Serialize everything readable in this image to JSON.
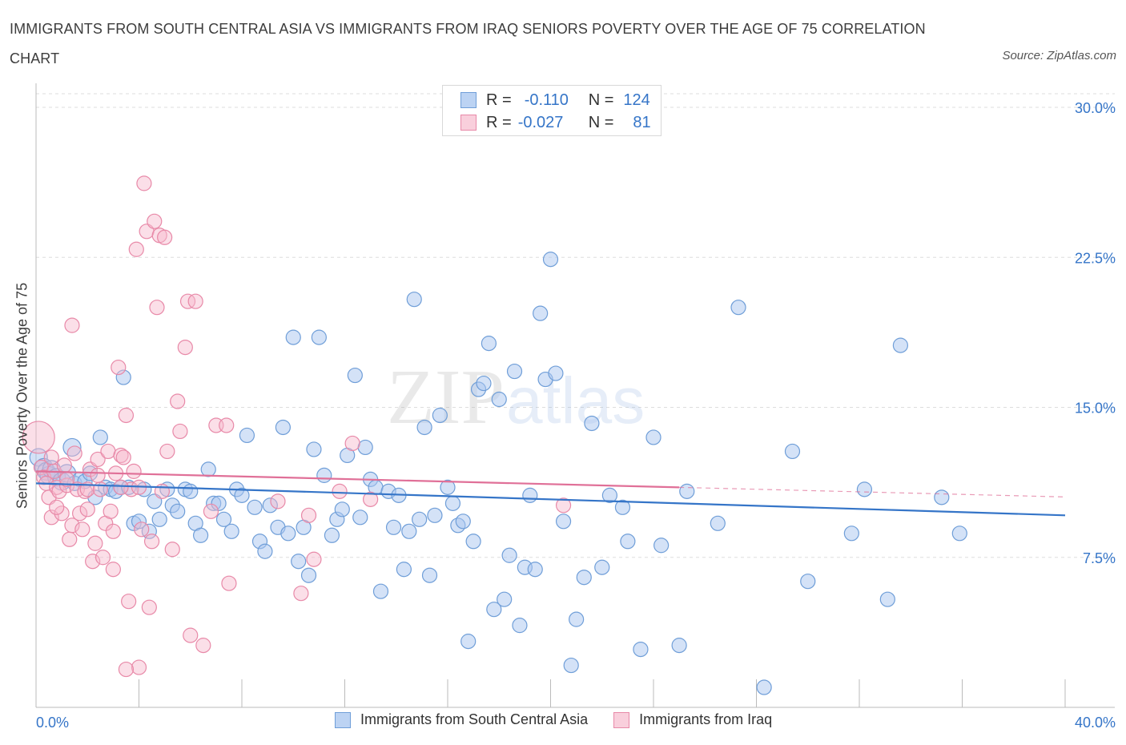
{
  "title": "IMMIGRANTS FROM SOUTH CENTRAL ASIA VS IMMIGRANTS FROM IRAQ SENIORS POVERTY OVER THE AGE OF 75 CORRELATION CHART",
  "source": "Source: ZipAtlas.com",
  "watermark": {
    "zip": "ZIP",
    "atlas": "atlas"
  },
  "legend": {
    "series1": {
      "r_label": "R =",
      "r_value": "-0.110",
      "n_label": "N =",
      "n_value": "124"
    },
    "series2": {
      "r_label": "R =",
      "r_value": "-0.027",
      "n_label": "N =",
      "n_value": "81"
    }
  },
  "colors": {
    "blue_fill": "#a9c6ef",
    "blue_stroke": "#6f9ed8",
    "blue_line": "#3575c8",
    "pink_fill": "#f6b9cc",
    "pink_stroke": "#e889a8",
    "pink_line": "#e07098",
    "axis_label": "#3575c8",
    "grid": "#dddddd"
  },
  "chart_data": {
    "type": "scatter",
    "title": "IMMIGRANTS FROM SOUTH CENTRAL ASIA VS IMMIGRANTS FROM IRAQ SENIORS POVERTY OVER THE AGE OF 75 CORRELATION CHART",
    "xlabel": "",
    "ylabel": "Seniors Poverty Over the Age of 75",
    "xlim": [
      0,
      40
    ],
    "ylim": [
      0,
      30
    ],
    "x_tick_labels": [
      "0.0%",
      "40.0%"
    ],
    "y_ticks": [
      7.5,
      15.0,
      22.5,
      30.0
    ],
    "y_tick_labels": [
      "7.5%",
      "15.0%",
      "22.5%",
      "30.0%"
    ],
    "grid": "horizontal dashed",
    "legend_position": "top-center and bottom",
    "series": [
      {
        "name": "Immigrants from South Central Asia",
        "color": "#a9c6ef",
        "trend": {
          "x": [
            0,
            40
          ],
          "y": [
            11.2,
            9.6
          ]
        },
        "points": [
          [
            0.1,
            12.5
          ],
          [
            0.3,
            12.0
          ],
          [
            0.4,
            11.8
          ],
          [
            0.5,
            11.6
          ],
          [
            0.6,
            11.9
          ],
          [
            0.8,
            11.5
          ],
          [
            1.0,
            11.3
          ],
          [
            1.2,
            11.7
          ],
          [
            1.4,
            13.0
          ],
          [
            1.5,
            11.2
          ],
          [
            1.7,
            11.4
          ],
          [
            1.9,
            11.3
          ],
          [
            2.1,
            11.7
          ],
          [
            2.3,
            10.5
          ],
          [
            2.5,
            13.5
          ],
          [
            2.7,
            11.0
          ],
          [
            2.9,
            10.9
          ],
          [
            3.1,
            10.8
          ],
          [
            3.3,
            11.0
          ],
          [
            3.4,
            16.5
          ],
          [
            3.6,
            11.0
          ],
          [
            3.8,
            9.2
          ],
          [
            4.0,
            9.3
          ],
          [
            4.2,
            10.9
          ],
          [
            4.4,
            8.8
          ],
          [
            4.6,
            10.3
          ],
          [
            4.8,
            9.4
          ],
          [
            5.1,
            10.9
          ],
          [
            5.3,
            10.1
          ],
          [
            5.5,
            9.8
          ],
          [
            5.8,
            10.9
          ],
          [
            6.0,
            10.8
          ],
          [
            6.2,
            9.2
          ],
          [
            6.4,
            8.6
          ],
          [
            6.7,
            11.9
          ],
          [
            6.9,
            10.2
          ],
          [
            7.1,
            10.2
          ],
          [
            7.3,
            9.4
          ],
          [
            7.6,
            8.8
          ],
          [
            7.8,
            10.9
          ],
          [
            8.0,
            10.6
          ],
          [
            8.2,
            13.6
          ],
          [
            8.5,
            10.0
          ],
          [
            8.7,
            8.3
          ],
          [
            8.9,
            7.8
          ],
          [
            9.1,
            10.1
          ],
          [
            9.4,
            9.0
          ],
          [
            9.6,
            14.0
          ],
          [
            9.8,
            8.7
          ],
          [
            10.0,
            18.5
          ],
          [
            10.2,
            7.3
          ],
          [
            10.4,
            9.0
          ],
          [
            10.6,
            6.6
          ],
          [
            10.8,
            12.9
          ],
          [
            11.0,
            18.5
          ],
          [
            11.2,
            11.6
          ],
          [
            11.5,
            8.6
          ],
          [
            11.7,
            9.4
          ],
          [
            11.9,
            9.9
          ],
          [
            12.1,
            12.6
          ],
          [
            12.4,
            16.6
          ],
          [
            12.6,
            9.5
          ],
          [
            12.8,
            13.0
          ],
          [
            13.0,
            11.4
          ],
          [
            13.2,
            11.0
          ],
          [
            13.4,
            5.8
          ],
          [
            13.7,
            10.8
          ],
          [
            13.9,
            9.0
          ],
          [
            14.1,
            10.6
          ],
          [
            14.3,
            6.9
          ],
          [
            14.5,
            8.8
          ],
          [
            14.7,
            20.4
          ],
          [
            14.9,
            9.4
          ],
          [
            15.1,
            14.0
          ],
          [
            15.3,
            6.6
          ],
          [
            15.5,
            9.6
          ],
          [
            15.7,
            14.6
          ],
          [
            16.0,
            11.0
          ],
          [
            16.2,
            10.2
          ],
          [
            16.4,
            9.1
          ],
          [
            16.6,
            9.3
          ],
          [
            16.8,
            3.3
          ],
          [
            17.0,
            8.3
          ],
          [
            17.2,
            15.9
          ],
          [
            17.4,
            16.2
          ],
          [
            17.6,
            18.2
          ],
          [
            17.8,
            4.9
          ],
          [
            18.0,
            15.4
          ],
          [
            18.2,
            5.4
          ],
          [
            18.4,
            7.6
          ],
          [
            18.6,
            16.8
          ],
          [
            18.8,
            4.1
          ],
          [
            19.0,
            7.0
          ],
          [
            19.2,
            10.6
          ],
          [
            19.4,
            6.9
          ],
          [
            19.6,
            19.7
          ],
          [
            19.8,
            16.4
          ],
          [
            20.0,
            22.4
          ],
          [
            20.2,
            16.7
          ],
          [
            20.5,
            9.3
          ],
          [
            20.8,
            2.1
          ],
          [
            21.0,
            4.4
          ],
          [
            21.3,
            6.5
          ],
          [
            21.6,
            14.2
          ],
          [
            22.0,
            7.0
          ],
          [
            22.3,
            10.6
          ],
          [
            22.8,
            10.0
          ],
          [
            23.0,
            8.3
          ],
          [
            23.5,
            2.9
          ],
          [
            24.0,
            13.5
          ],
          [
            24.3,
            8.1
          ],
          [
            25.0,
            3.1
          ],
          [
            25.3,
            10.8
          ],
          [
            26.5,
            9.2
          ],
          [
            27.3,
            20.0
          ],
          [
            28.3,
            1.0
          ],
          [
            29.4,
            12.8
          ],
          [
            30.0,
            6.3
          ],
          [
            31.7,
            8.7
          ],
          [
            32.2,
            10.9
          ],
          [
            33.1,
            5.4
          ],
          [
            33.6,
            18.1
          ],
          [
            35.2,
            10.5
          ],
          [
            35.9,
            8.7
          ]
        ]
      },
      {
        "name": "Immigrants from Iraq",
        "color": "#f6b9cc",
        "trend": {
          "x": [
            0,
            25
          ],
          "y": [
            11.8,
            11.0
          ]
        },
        "points": [
          [
            0.1,
            13.5
          ],
          [
            0.2,
            12.0
          ],
          [
            0.3,
            11.5
          ],
          [
            0.4,
            11.2
          ],
          [
            0.5,
            10.5
          ],
          [
            0.6,
            9.5
          ],
          [
            0.7,
            11.8
          ],
          [
            0.8,
            11.0
          ],
          [
            0.9,
            10.8
          ],
          [
            1.0,
            9.7
          ],
          [
            1.1,
            12.1
          ],
          [
            1.2,
            11.1
          ],
          [
            1.3,
            8.4
          ],
          [
            1.4,
            9.1
          ],
          [
            1.5,
            12.7
          ],
          [
            1.6,
            10.9
          ],
          [
            1.7,
            9.7
          ],
          [
            1.8,
            8.9
          ],
          [
            1.9,
            10.8
          ],
          [
            2.0,
            10.9
          ],
          [
            2.1,
            11.9
          ],
          [
            2.2,
            7.3
          ],
          [
            2.3,
            8.2
          ],
          [
            2.4,
            12.4
          ],
          [
            2.5,
            10.9
          ],
          [
            2.6,
            7.5
          ],
          [
            2.7,
            9.2
          ],
          [
            2.8,
            12.8
          ],
          [
            2.9,
            9.8
          ],
          [
            3.0,
            6.9
          ],
          [
            3.1,
            11.7
          ],
          [
            3.2,
            17.0
          ],
          [
            3.3,
            12.6
          ],
          [
            3.4,
            12.5
          ],
          [
            3.5,
            14.6
          ],
          [
            3.6,
            5.3
          ],
          [
            3.7,
            10.9
          ],
          [
            3.8,
            11.8
          ],
          [
            3.9,
            22.9
          ],
          [
            4.0,
            2.0
          ],
          [
            4.1,
            8.9
          ],
          [
            4.2,
            26.2
          ],
          [
            4.3,
            23.8
          ],
          [
            4.4,
            5.0
          ],
          [
            4.5,
            8.3
          ],
          [
            4.6,
            24.3
          ],
          [
            4.7,
            20.0
          ],
          [
            4.8,
            23.6
          ],
          [
            4.9,
            10.8
          ],
          [
            5.0,
            23.5
          ],
          [
            5.1,
            12.8
          ],
          [
            5.3,
            7.9
          ],
          [
            5.5,
            15.3
          ],
          [
            5.6,
            13.8
          ],
          [
            5.8,
            18.0
          ],
          [
            5.9,
            20.3
          ],
          [
            6.0,
            3.6
          ],
          [
            6.2,
            20.3
          ],
          [
            6.5,
            3.1
          ],
          [
            6.8,
            9.8
          ],
          [
            7.0,
            14.1
          ],
          [
            7.4,
            14.1
          ],
          [
            7.5,
            6.2
          ],
          [
            9.4,
            10.3
          ],
          [
            10.3,
            5.7
          ],
          [
            10.6,
            9.6
          ],
          [
            10.8,
            7.4
          ],
          [
            11.8,
            10.8
          ],
          [
            12.3,
            13.2
          ],
          [
            13.0,
            10.4
          ],
          [
            20.5,
            10.1
          ],
          [
            1.4,
            19.1
          ],
          [
            2.0,
            9.9
          ],
          [
            3.0,
            8.8
          ],
          [
            3.5,
            1.9
          ],
          [
            0.6,
            12.5
          ],
          [
            0.8,
            10.0
          ],
          [
            1.2,
            11.4
          ],
          [
            2.4,
            11.6
          ],
          [
            3.3,
            11.0
          ],
          [
            4.0,
            11.0
          ]
        ]
      }
    ]
  },
  "bottom_legend": {
    "series1": "Immigrants from South Central Asia",
    "series2": "Immigrants from Iraq"
  }
}
